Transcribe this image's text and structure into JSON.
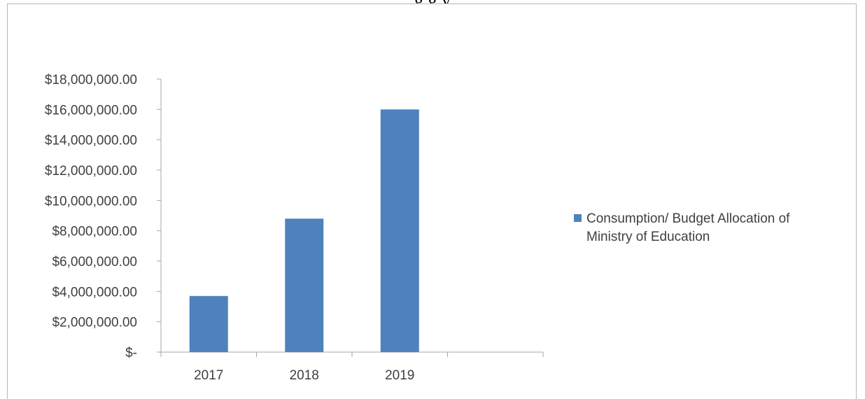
{
  "header": {
    "cropped_title": "g            g                                                 y"
  },
  "colors": {
    "bar": "#4f81bd",
    "axis": "#a6a6a6",
    "text": "#404040"
  },
  "chart_data": {
    "type": "bar",
    "categories": [
      "2017",
      "2018",
      "2019",
      ""
    ],
    "series": [
      {
        "name": "Consumption/ Budget Allocation of Ministry of Education",
        "values": [
          3700000,
          8800000,
          16000000,
          null
        ]
      }
    ],
    "ylim": [
      0,
      18000000
    ],
    "ytick_step": 2000000,
    "ytick_labels": [
      "$-",
      "$2,000,000.00",
      "$4,000,000.00",
      "$6,000,000.00",
      "$8,000,000.00",
      "$10,000,000.00",
      "$12,000,000.00",
      "$14,000,000.00",
      "$16,000,000.00",
      "$18,000,000.00"
    ],
    "grid": false,
    "legend_position": "right"
  }
}
